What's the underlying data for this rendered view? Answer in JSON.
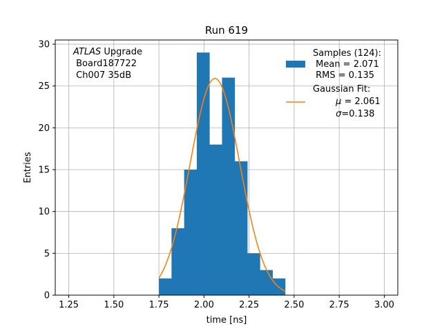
{
  "chart_data": {
    "type": "bar",
    "title": "Run 619",
    "xlabel": "time [ns]",
    "ylabel": "Entries",
    "xlim": [
      1.175,
      3.075
    ],
    "ylim": [
      0,
      30.5
    ],
    "xticks": [
      "1.25",
      "1.50",
      "1.75",
      "2.00",
      "2.25",
      "2.50",
      "2.75",
      "3.00"
    ],
    "xtick_values": [
      1.25,
      1.5,
      1.75,
      2.0,
      2.25,
      2.5,
      2.75,
      3.0
    ],
    "yticks": [
      "0",
      "5",
      "10",
      "15",
      "20",
      "25",
      "30"
    ],
    "ytick_values": [
      0,
      5,
      10,
      15,
      20,
      25,
      30
    ],
    "grid": true,
    "bar_color": "#1f77b4",
    "fit_color": "#ff7f0e",
    "histogram": {
      "bin_edges": [
        1.75,
        1.82,
        1.89,
        1.96,
        2.03,
        2.1,
        2.17,
        2.24,
        2.31,
        2.38,
        2.45
      ],
      "counts": [
        2,
        8,
        15,
        29,
        18,
        26,
        16,
        5,
        3,
        2
      ]
    },
    "gaussian_fit": {
      "mu": 2.061,
      "sigma": 0.138,
      "amplitude": 25.9,
      "x_range": [
        1.75,
        2.45
      ]
    },
    "annotation": {
      "line1_italic": "ATLAS",
      "line1_rest": " Upgrade",
      "line2": " Board187722",
      "line3": " Ch007 35dB"
    },
    "legend": {
      "position": "top-right",
      "samples_line1": "Samples (124):",
      "samples_line2": " Mean = 2.071",
      "samples_line3": " RMS = 0.135",
      "fit_line1": "Gaussian Fit:",
      "fit_line2_sym": "μ",
      "fit_line2_rest": " = 2.061",
      "fit_line3_sym": "σ",
      "fit_line3_rest": "=0.138"
    }
  }
}
